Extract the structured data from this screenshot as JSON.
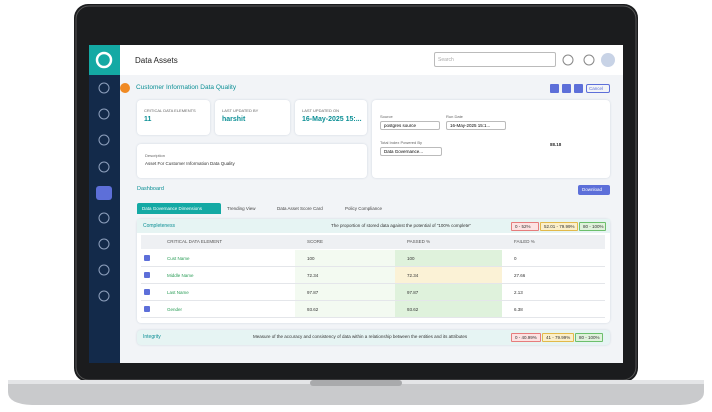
{
  "header": {
    "title": "Data Assets",
    "search_placeholder": "Search"
  },
  "page": {
    "title": "Customer Information Data Quality",
    "cancel": "Cancel"
  },
  "cards": [
    {
      "label": "CRITICAL DATA ELEMENTS",
      "value": "11"
    },
    {
      "label": "LAST UPDATED BY",
      "value": "harshit"
    },
    {
      "label": "LAST UPDATED ON",
      "value": "16-May-2025 15:..."
    }
  ],
  "description": {
    "label": "Description",
    "text": "Asset For Customer Information Data Quality"
  },
  "filters": {
    "source_label": "Source",
    "source_value": "postgres source",
    "run_label": "Run Date",
    "run_value": "16-May-2025 15:1...",
    "index_label": "Total Index Powered By",
    "index_value": "Data Governance..."
  },
  "gauge": {
    "value": "88.18"
  },
  "dashboard": {
    "title": "Dashboard",
    "download": "Download"
  },
  "tabs": [
    "Data Governance Dimensions",
    "Trending View",
    "Data Asset Score Card",
    "Policy Compliance"
  ],
  "completeness": {
    "name": "Completeness",
    "description": "The proportion of stored data against the potential of \"100% complete\"",
    "ranges": [
      "0 - 52%",
      "52.01 - 79.99%",
      "80 - 100%"
    ],
    "table": {
      "columns": [
        "CRITICAL DATA ELEMENT",
        "SCORE",
        "PASSED %",
        "FAILED %"
      ],
      "rows": [
        [
          "Cust Name",
          "100",
          "100",
          "0"
        ],
        [
          "Middle Name",
          "72.34",
          "72.34",
          "27.66"
        ],
        [
          "Last Name",
          "97.87",
          "97.87",
          "2.13"
        ],
        [
          "Gender",
          "93.62",
          "93.62",
          "6.38"
        ]
      ]
    }
  },
  "integrity": {
    "name": "Integrity",
    "description": "Measure of the accuracy and consistency of data within a relationship between the entities and its attributes",
    "ranges": [
      "0 - 40.99%",
      "41 - 79.99%",
      "80 - 100%"
    ]
  }
}
